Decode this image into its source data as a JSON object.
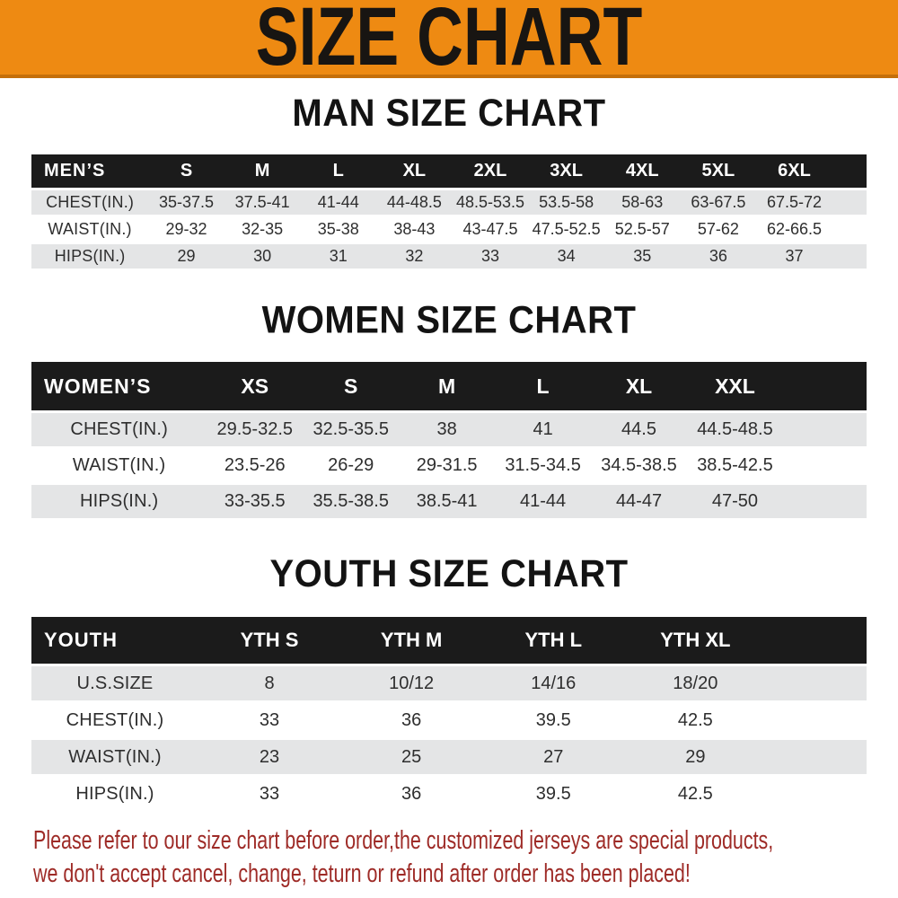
{
  "banner": {
    "title": "SIZE CHART",
    "background": "#EE8A12",
    "border_color": "#C56F0A",
    "text_color": "#181512"
  },
  "sections": [
    {
      "title": "MAN SIZE CHART",
      "header_label": "MEN’S",
      "columns": [
        "S",
        "M",
        "L",
        "XL",
        "2XL",
        "3XL",
        "4XL",
        "5XL",
        "6XL"
      ],
      "rows": [
        {
          "label": "CHEST(IN.)",
          "values": [
            "35-37.5",
            "37.5-41",
            "41-44",
            "44-48.5",
            "48.5-53.5",
            "53.5-58",
            "58-63",
            "63-67.5",
            "67.5-72"
          ]
        },
        {
          "label": "WAIST(IN.)",
          "values": [
            "29-32",
            "32-35",
            "35-38",
            "38-43",
            "43-47.5",
            "47.5-52.5",
            "52.5-57",
            "57-62",
            "62-66.5"
          ]
        },
        {
          "label": "HIPS(IN.)",
          "values": [
            "29",
            "30",
            "31",
            "32",
            "33",
            "34",
            "35",
            "36",
            "37"
          ]
        }
      ]
    },
    {
      "title": "WOMEN SIZE CHART",
      "header_label": "WOMEN’S",
      "columns": [
        "XS",
        "S",
        "M",
        "L",
        "XL",
        "XXL"
      ],
      "rows": [
        {
          "label": "CHEST(IN.)",
          "values": [
            "29.5-32.5",
            "32.5-35.5",
            "38",
            "41",
            "44.5",
            "44.5-48.5"
          ]
        },
        {
          "label": "WAIST(IN.)",
          "values": [
            "23.5-26",
            "26-29",
            "29-31.5",
            "31.5-34.5",
            "34.5-38.5",
            "38.5-42.5"
          ]
        },
        {
          "label": "HIPS(IN.)",
          "values": [
            "33-35.5",
            "35.5-38.5",
            "38.5-41",
            "41-44",
            "44-47",
            "47-50"
          ]
        }
      ]
    },
    {
      "title": "YOUTH SIZE CHART",
      "header_label": "YOUTH",
      "columns": [
        "YTH S",
        "YTH M",
        "YTH L",
        "YTH XL"
      ],
      "rows": [
        {
          "label": "U.S.SIZE",
          "values": [
            "8",
            "10/12",
            "14/16",
            "18/20"
          ]
        },
        {
          "label": "CHEST(IN.)",
          "values": [
            "33",
            "36",
            "39.5",
            "42.5"
          ]
        },
        {
          "label": "WAIST(IN.)",
          "values": [
            "23",
            "25",
            "27",
            "29"
          ]
        },
        {
          "label": "HIPS(IN.)",
          "values": [
            "33",
            "36",
            "39.5",
            "42.5"
          ]
        }
      ]
    }
  ],
  "footer": {
    "line1": "Please refer to our size chart before order,the customized jerseys are special products,",
    "line2": "we don't accept cancel, change, teturn or refund after order has been placed!",
    "text_color": "#9E2B27"
  },
  "colors": {
    "header_row_bg": "#1B1B1B",
    "header_row_text": "#FFFFFF",
    "alt_row_bg": "#E4E5E6",
    "body_text": "#2E2E2E",
    "page_bg": "#FFFFFF"
  }
}
